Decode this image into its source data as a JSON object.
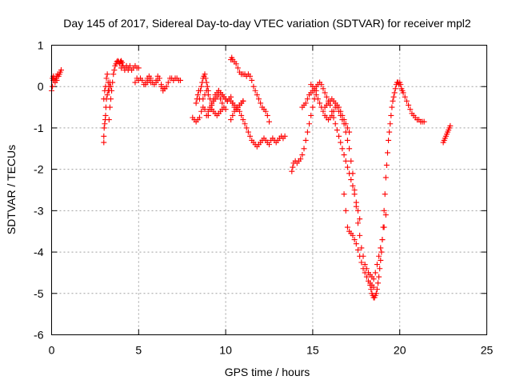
{
  "chart_data": {
    "type": "scatter",
    "title": "Day 145 of 2017, Sidereal Day-to-day VTEC variation (SDTVAR) for receiver mpl2",
    "xlabel": "GPS time / hours",
    "ylabel": "SDTVAR / TECUs",
    "xlim": [
      0,
      25
    ],
    "ylim": [
      -6,
      1
    ],
    "x_ticks": [
      0,
      5,
      10,
      15,
      20,
      25
    ],
    "x_tick_labels": [
      "0",
      "5",
      "10",
      "15",
      "20",
      "25"
    ],
    "y_ticks": [
      1,
      0,
      -1,
      -2,
      -3,
      -4,
      -5,
      -6
    ],
    "y_tick_labels": [
      "1",
      "0",
      "-1",
      "-2",
      "-3",
      "-4",
      "-5",
      "-6"
    ],
    "grid": true,
    "legend": "none",
    "marker": "plus",
    "color": "#ff0000",
    "segments": [
      {
        "x": [
          0.0,
          0.05,
          0.1,
          0.15,
          0.2,
          0.25,
          0.3,
          0.35,
          0.4,
          0.45,
          0.5,
          0.55
        ],
        "y": [
          -0.1,
          0.0,
          0.15,
          0.2,
          0.15,
          0.2,
          0.25,
          0.3,
          0.25,
          0.3,
          0.35,
          0.4
        ]
      },
      {
        "x": [
          0.05,
          0.1,
          0.2,
          0.3
        ],
        "y": [
          0.2,
          0.25,
          0.1,
          0.15
        ]
      },
      {
        "x": [
          3.0,
          3.0,
          3.02,
          3.05,
          3.08,
          3.1,
          3.12,
          3.15,
          3.2,
          3.25,
          3.3,
          3.35,
          3.4
        ],
        "y": [
          -1.35,
          -1.2,
          -1.0,
          -0.9,
          -0.8,
          -0.7,
          -0.5,
          -0.3,
          -0.2,
          -0.1,
          0.0,
          0.1,
          0.0
        ]
      },
      {
        "x": [
          3.0,
          3.05,
          3.1,
          3.15,
          3.2,
          3.25,
          3.3
        ],
        "y": [
          -0.3,
          -0.1,
          0.0,
          0.2,
          0.3,
          0.1,
          -0.1
        ]
      },
      {
        "x": [
          3.3,
          3.35,
          3.4,
          3.45,
          3.5,
          3.55,
          3.6,
          3.65,
          3.7,
          3.75,
          3.8,
          3.85,
          3.9,
          3.95,
          4.0,
          4.05,
          4.1,
          4.2,
          4.3,
          4.4,
          4.5,
          4.6,
          4.7,
          4.8,
          4.9,
          5.0
        ],
        "y": [
          -0.8,
          -0.5,
          -0.3,
          -0.1,
          0.1,
          0.3,
          0.4,
          0.5,
          0.55,
          0.6,
          0.62,
          0.6,
          0.55,
          0.6,
          0.62,
          0.58,
          0.5,
          0.45,
          0.5,
          0.45,
          0.45,
          0.4,
          0.45,
          0.5,
          0.45,
          0.45
        ]
      },
      {
        "x": [
          4.0,
          4.1,
          4.2,
          4.3,
          4.4,
          4.5
        ],
        "y": [
          0.45,
          0.5,
          0.4,
          0.45,
          0.4,
          0.5
        ]
      },
      {
        "x": [
          4.8,
          4.9,
          5.0,
          5.1,
          5.2,
          5.3,
          5.4,
          5.5,
          5.6,
          5.7,
          5.8,
          5.9,
          6.0,
          6.1,
          6.2,
          6.3,
          6.4,
          6.5,
          6.6,
          6.7,
          6.8,
          6.9,
          7.0,
          7.1,
          7.2,
          7.3,
          7.4
        ],
        "y": [
          0.1,
          0.2,
          0.15,
          0.2,
          0.15,
          0.05,
          0.1,
          0.2,
          0.25,
          0.2,
          0.1,
          0.05,
          0.15,
          0.25,
          0.2,
          0.05,
          -0.05,
          -0.05,
          0.0,
          0.1,
          0.2,
          0.2,
          0.15,
          0.2,
          0.2,
          0.15,
          0.15
        ]
      },
      {
        "x": [
          5.4,
          5.5,
          5.6,
          5.7,
          6.0,
          6.1,
          6.3,
          6.4,
          6.5
        ],
        "y": [
          0.05,
          0.1,
          0.15,
          0.1,
          0.1,
          0.15,
          0.0,
          -0.1,
          -0.05
        ]
      },
      {
        "x": [
          8.1,
          8.2,
          8.3,
          8.4,
          8.5,
          8.6,
          8.7,
          8.8,
          8.9,
          9.0,
          9.1,
          9.2,
          9.3,
          9.4,
          9.5,
          9.6,
          9.7,
          9.8
        ],
        "y": [
          -0.75,
          -0.8,
          -0.85,
          -0.8,
          -0.75,
          -0.6,
          -0.5,
          -0.55,
          -0.7,
          -0.6,
          -0.5,
          -0.55,
          -0.6,
          -0.65,
          -0.7,
          -0.65,
          -0.6,
          -0.55
        ]
      },
      {
        "x": [
          8.3,
          8.35,
          8.4,
          8.45,
          8.5,
          8.55,
          8.6,
          8.65,
          8.7,
          8.75,
          8.8,
          8.85,
          8.9,
          8.95,
          9.0
        ],
        "y": [
          -0.4,
          -0.3,
          -0.2,
          -0.1,
          -0.3,
          -0.1,
          0.0,
          0.1,
          0.2,
          0.25,
          0.3,
          0.2,
          0.1,
          0.0,
          -0.1
        ]
      },
      {
        "x": [
          8.7,
          8.8,
          8.9,
          9.0,
          9.1,
          9.2,
          9.3,
          9.4,
          9.5,
          9.6,
          9.7,
          9.8,
          9.9,
          10.0
        ],
        "y": [
          -0.3,
          -0.2,
          -0.1,
          -0.2,
          -0.3,
          -0.4,
          -0.35,
          -0.3,
          -0.25,
          -0.2,
          -0.3,
          -0.4,
          -0.5,
          -0.55
        ]
      },
      {
        "x": [
          9.0,
          9.1,
          9.2,
          9.3,
          9.4,
          9.5,
          9.6,
          9.7,
          9.8,
          9.9,
          10.0,
          10.1,
          10.2,
          10.3,
          10.4,
          10.5,
          10.6,
          10.7,
          10.8,
          10.9,
          11.0
        ],
        "y": [
          -0.7,
          -0.55,
          -0.45,
          -0.3,
          -0.2,
          -0.15,
          -0.1,
          -0.15,
          -0.2,
          -0.25,
          -0.3,
          -0.35,
          -0.3,
          -0.25,
          -0.4,
          -0.5,
          -0.55,
          -0.5,
          -0.45,
          -0.4,
          -0.35
        ]
      },
      {
        "x": [
          9.6,
          9.7,
          9.8,
          9.9,
          10.0,
          10.1,
          10.2,
          10.3,
          10.4,
          10.5,
          10.6,
          10.7,
          10.8,
          10.9,
          11.0,
          11.1,
          11.2,
          11.3,
          11.4,
          11.5,
          11.6,
          11.7,
          11.8,
          11.9,
          12.0,
          12.1,
          12.2,
          12.3,
          12.4,
          12.5
        ],
        "y": [
          -0.1,
          -0.15,
          -0.2,
          -0.25,
          -0.3,
          -0.35,
          -0.3,
          -0.35,
          -0.4,
          -0.45,
          -0.5,
          -0.55,
          -0.6,
          -0.7,
          -0.8,
          -0.9,
          -1.0,
          -1.1,
          -1.2,
          -1.3,
          -1.35,
          -1.4,
          -1.45,
          -1.4,
          -1.35,
          -1.3,
          -1.25,
          -1.3,
          -1.35,
          -1.4
        ]
      },
      {
        "x": [
          10.3,
          10.35,
          10.4,
          10.5,
          10.6,
          10.7,
          10.8,
          10.9,
          11.0,
          11.1,
          11.2,
          11.3,
          11.4,
          11.5,
          11.6,
          11.7,
          11.8,
          11.9,
          12.0,
          12.1,
          12.2,
          12.3,
          12.4,
          12.5
        ],
        "y": [
          0.65,
          0.7,
          0.65,
          0.6,
          0.55,
          0.45,
          0.35,
          0.3,
          0.3,
          0.3,
          0.25,
          0.3,
          0.25,
          0.15,
          0.0,
          -0.1,
          -0.2,
          -0.3,
          -0.4,
          -0.5,
          -0.55,
          -0.6,
          -0.7,
          -0.85
        ]
      },
      {
        "x": [
          10.3,
          10.4,
          10.5,
          10.6,
          10.7,
          10.8,
          10.9,
          11.0
        ],
        "y": [
          -0.8,
          -0.7,
          -0.6,
          -0.55,
          -0.5,
          -0.45,
          -0.4,
          -0.35
        ]
      },
      {
        "x": [
          12.6,
          12.7,
          12.8,
          12.9,
          13.0,
          13.1,
          13.2,
          13.3,
          13.4
        ],
        "y": [
          -1.3,
          -1.25,
          -1.3,
          -1.35,
          -1.3,
          -1.25,
          -1.2,
          -1.25,
          -1.2
        ]
      },
      {
        "x": [
          13.8,
          13.85,
          13.9,
          14.0,
          14.1,
          14.2,
          14.3,
          14.4,
          14.5,
          14.6,
          14.7,
          14.8,
          14.9,
          15.0,
          15.1,
          15.2
        ],
        "y": [
          -2.05,
          -1.95,
          -1.85,
          -1.8,
          -1.85,
          -1.8,
          -1.75,
          -1.65,
          -1.5,
          -1.3,
          -1.1,
          -0.9,
          -0.7,
          -0.5,
          -0.3,
          -0.1
        ]
      },
      {
        "x": [
          14.4,
          14.5,
          14.6,
          14.7,
          14.8,
          14.9,
          15.0,
          15.1,
          15.2,
          15.3,
          15.4,
          15.5,
          15.6,
          15.7,
          15.8,
          15.9,
          16.0,
          16.1,
          16.2,
          16.3,
          16.4,
          16.5,
          16.6,
          16.7,
          16.8,
          16.9,
          17.0,
          17.1,
          17.2,
          17.3,
          17.4,
          17.5,
          17.6,
          17.7
        ],
        "y": [
          -0.5,
          -0.45,
          -0.4,
          -0.3,
          -0.2,
          -0.15,
          -0.1,
          -0.05,
          0.0,
          0.05,
          0.1,
          0.05,
          -0.05,
          -0.15,
          -0.25,
          -0.35,
          -0.45,
          -0.6,
          -0.75,
          -0.9,
          -1.05,
          -1.2,
          -1.35,
          -1.5,
          -1.65,
          -1.8,
          -1.95,
          -2.1,
          -2.25,
          -2.4,
          -2.6,
          -2.8,
          -3.0,
          -3.2
        ]
      },
      {
        "x": [
          14.9,
          15.0,
          15.1,
          15.2,
          15.3,
          15.4,
          15.5,
          15.6,
          15.7,
          15.8,
          15.9,
          16.0,
          16.1,
          16.2,
          16.3,
          16.4,
          16.5,
          16.6,
          16.7,
          16.8,
          16.9,
          17.0,
          17.1
        ],
        "y": [
          0.05,
          0.0,
          -0.1,
          -0.2,
          -0.3,
          -0.4,
          -0.5,
          -0.6,
          -0.7,
          -0.75,
          -0.8,
          -0.75,
          -0.7,
          -0.6,
          -0.5,
          -0.45,
          -0.5,
          -0.6,
          -0.7,
          -0.8,
          -0.9,
          -1.0,
          -1.1
        ]
      },
      {
        "x": [
          15.7,
          15.8,
          15.9,
          16.0,
          16.1,
          16.2,
          16.3,
          16.4,
          16.5,
          16.6,
          16.7,
          16.8,
          16.9,
          17.0,
          17.1,
          17.2,
          17.3,
          17.4,
          17.5,
          17.6,
          17.7,
          17.8,
          17.9,
          18.0,
          18.1,
          18.2,
          18.3,
          18.4,
          18.5
        ],
        "y": [
          -0.5,
          -0.45,
          -0.4,
          -0.35,
          -0.3,
          -0.35,
          -0.4,
          -0.5,
          -0.6,
          -0.7,
          -0.8,
          -0.9,
          -1.1,
          -1.3,
          -1.5,
          -1.8,
          -2.1,
          -2.5,
          -2.9,
          -3.3,
          -3.6,
          -3.9,
          -4.1,
          -4.3,
          -4.4,
          -4.5,
          -4.55,
          -4.6,
          -4.65
        ]
      },
      {
        "x": [
          16.8,
          16.9,
          17.0,
          17.1,
          17.2,
          17.3,
          17.4,
          17.5,
          17.6,
          17.7,
          17.8,
          17.9,
          18.0,
          18.1,
          18.2,
          18.3,
          18.4,
          18.5
        ],
        "y": [
          -2.6,
          -3.0,
          -3.4,
          -3.5,
          -3.55,
          -3.6,
          -3.7,
          -3.8,
          -3.95,
          -4.1,
          -4.25,
          -4.4,
          -4.5,
          -4.6,
          -4.7,
          -4.75,
          -4.8,
          -4.85
        ]
      },
      {
        "x": [
          18.3,
          18.35,
          18.4,
          18.45,
          18.5,
          18.55,
          18.6,
          18.65,
          18.7,
          18.75,
          18.8,
          18.85,
          18.9,
          18.95,
          19.0,
          19.05,
          19.1,
          19.15,
          19.2,
          19.25,
          19.3,
          19.35,
          19.4,
          19.45,
          19.5,
          19.55,
          19.6,
          19.65,
          19.7,
          19.75,
          19.8,
          19.85,
          19.9,
          19.95,
          20.0,
          20.05,
          20.1,
          20.15,
          20.2,
          20.3,
          20.4,
          20.5,
          20.6,
          20.7,
          20.8,
          20.9,
          21.0,
          21.1,
          21.2,
          21.3,
          21.4
        ],
        "y": [
          -4.8,
          -4.9,
          -5.0,
          -5.05,
          -5.1,
          -5.1,
          -5.05,
          -5.0,
          -4.9,
          -4.75,
          -4.6,
          -4.4,
          -4.2,
          -4.0,
          -3.7,
          -3.4,
          -3.0,
          -2.6,
          -2.2,
          -1.9,
          -1.6,
          -1.3,
          -1.1,
          -0.9,
          -0.7,
          -0.5,
          -0.35,
          -0.25,
          -0.15,
          -0.05,
          0.05,
          0.1,
          0.1,
          0.05,
          0.1,
          0.05,
          -0.05,
          -0.1,
          -0.15,
          -0.25,
          -0.35,
          -0.45,
          -0.55,
          -0.65,
          -0.7,
          -0.75,
          -0.8,
          -0.8,
          -0.85,
          -0.85,
          -0.85
        ]
      },
      {
        "x": [
          18.6,
          18.7,
          18.8,
          18.9,
          19.0,
          19.1,
          19.2
        ],
        "y": [
          -4.5,
          -4.3,
          -4.1,
          -3.9,
          -3.7,
          -3.4,
          -3.1
        ]
      },
      {
        "x": [
          22.5,
          22.55,
          22.6,
          22.65,
          22.7,
          22.75,
          22.8,
          22.85,
          22.9
        ],
        "y": [
          -1.35,
          -1.3,
          -1.25,
          -1.2,
          -1.15,
          -1.1,
          -1.05,
          -1.0,
          -0.95
        ]
      }
    ]
  }
}
